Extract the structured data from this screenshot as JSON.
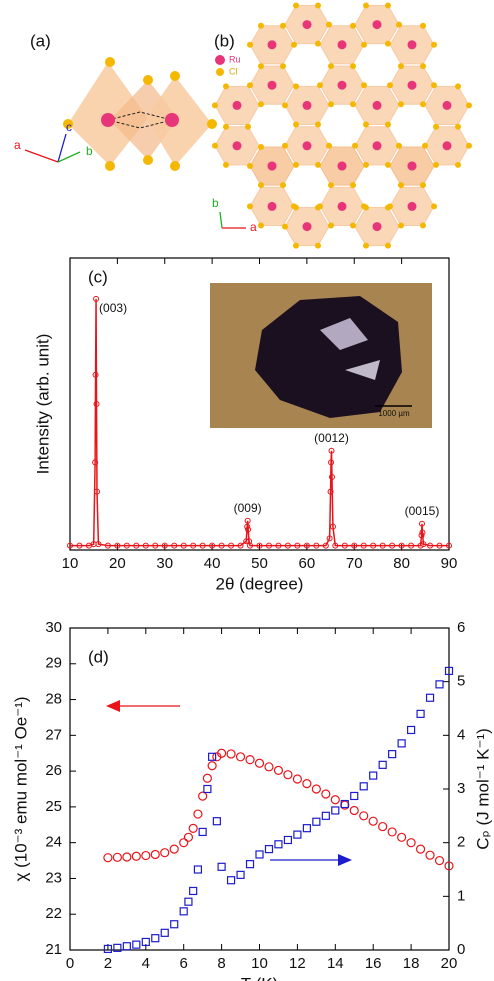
{
  "panel_a": {
    "label": "(a)",
    "axes": [
      "a",
      "c",
      "b"
    ]
  },
  "panel_b": {
    "label": "(b)",
    "legend": [
      "Ru",
      "Cl"
    ],
    "axes": [
      "b",
      "a"
    ]
  },
  "chart_data": [
    {
      "type": "line",
      "panel_label": "(c)",
      "xlabel": "2θ (degree)",
      "ylabel": "Intensity (arb. unit)",
      "x": [
        10,
        12,
        14,
        15,
        15.3,
        15.4,
        15.5,
        15.6,
        15.7,
        16,
        18,
        20,
        22,
        24,
        26,
        28,
        30,
        32,
        34,
        36,
        38,
        40,
        42,
        44,
        46,
        47.2,
        47.4,
        47.5,
        47.6,
        47.8,
        48,
        50,
        52,
        54,
        56,
        58,
        60,
        62,
        64,
        64.8,
        65,
        65.1,
        65.2,
        65.3,
        65.5,
        66,
        68,
        70,
        72,
        74,
        76,
        78,
        80,
        82,
        84,
        84.2,
        84.3,
        84.4,
        84.6,
        86,
        88,
        90
      ],
      "values": [
        1.5,
        1.5,
        1.5,
        2,
        30,
        60,
        86,
        50,
        20,
        2,
        1.5,
        1.5,
        1.5,
        1.5,
        1.5,
        1.5,
        1.5,
        1.5,
        1.5,
        1.5,
        1.5,
        1.5,
        1.5,
        1.5,
        1.5,
        3,
        8,
        10,
        7,
        3,
        1.5,
        1.5,
        1.5,
        1.5,
        1.5,
        1.5,
        1.5,
        1.5,
        1.5,
        4,
        20,
        30,
        34,
        25,
        8,
        1.5,
        1.5,
        1.5,
        1.5,
        1.5,
        1.5,
        1.5,
        1.5,
        1.5,
        1.5,
        5,
        9,
        6,
        2,
        1.5,
        1.5,
        1.5
      ],
      "color": "#e8141a",
      "xlim": [
        10,
        90
      ],
      "xticks": [
        10,
        20,
        30,
        40,
        50,
        60,
        70,
        80,
        90
      ],
      "ylim": [
        0,
        100
      ],
      "peak_labels": [
        "(003)",
        "(009)",
        "(0012)",
        "(0015)"
      ],
      "inset_scale": "1000 µm"
    },
    {
      "type": "scatter",
      "panel_label": "(d)",
      "xlabel": "T (K)",
      "ylabel": "χ (10⁻³ emu mol⁻¹ Oe⁻¹)",
      "y2label": "Cₚ (J mol⁻¹ K⁻¹)",
      "x": [
        2,
        2.5,
        3,
        3.5,
        4,
        4.5,
        5,
        5.5,
        6,
        6.25,
        6.5,
        6.75,
        7,
        7.25,
        7.5,
        7.75,
        8,
        8.5,
        9,
        9.5,
        10,
        10.5,
        11,
        11.5,
        12,
        12.5,
        13,
        13.5,
        14,
        14.5,
        15,
        15.5,
        16,
        16.5,
        17,
        17.5,
        18,
        18.5,
        19,
        19.5,
        20
      ],
      "series": [
        {
          "color": "#e8141a",
          "marker": "circle",
          "axis": "y",
          "values": [
            23.58,
            23.59,
            23.6,
            23.62,
            23.64,
            23.67,
            23.72,
            23.82,
            24.0,
            24.15,
            24.4,
            24.8,
            25.3,
            25.8,
            26.15,
            26.4,
            26.5,
            26.48,
            26.4,
            26.32,
            26.22,
            26.12,
            26.02,
            25.9,
            25.78,
            25.65,
            25.5,
            25.36,
            25.2,
            25.05,
            24.9,
            24.75,
            24.6,
            24.45,
            24.3,
            24.15,
            24.0,
            23.82,
            23.65,
            23.5,
            23.35
          ]
        },
        {
          "color": "#1c1ccc",
          "marker": "square",
          "axis": "y2",
          "values": [
            0.02,
            0.04,
            0.07,
            0.1,
            0.15,
            0.22,
            0.32,
            0.48,
            0.72,
            0.9,
            1.1,
            1.5,
            2.2,
            3.0,
            3.6,
            2.4,
            1.55,
            1.3,
            1.4,
            1.6,
            1.78,
            1.88,
            1.97,
            2.05,
            2.15,
            2.27,
            2.39,
            2.5,
            2.6,
            2.72,
            2.87,
            3.05,
            3.25,
            3.45,
            3.65,
            3.85,
            4.1,
            4.4,
            4.7,
            4.95,
            5.2
          ]
        }
      ],
      "xlim": [
        0,
        20
      ],
      "xticks": [
        0,
        2,
        4,
        6,
        8,
        10,
        12,
        14,
        16,
        18,
        20
      ],
      "ylim": [
        21,
        30
      ],
      "yticks": [
        21,
        22,
        23,
        24,
        25,
        26,
        27,
        28,
        29,
        30
      ],
      "y2lim": [
        0,
        6
      ],
      "y2ticks": [
        0,
        1,
        2,
        3,
        4,
        5,
        6
      ]
    }
  ]
}
